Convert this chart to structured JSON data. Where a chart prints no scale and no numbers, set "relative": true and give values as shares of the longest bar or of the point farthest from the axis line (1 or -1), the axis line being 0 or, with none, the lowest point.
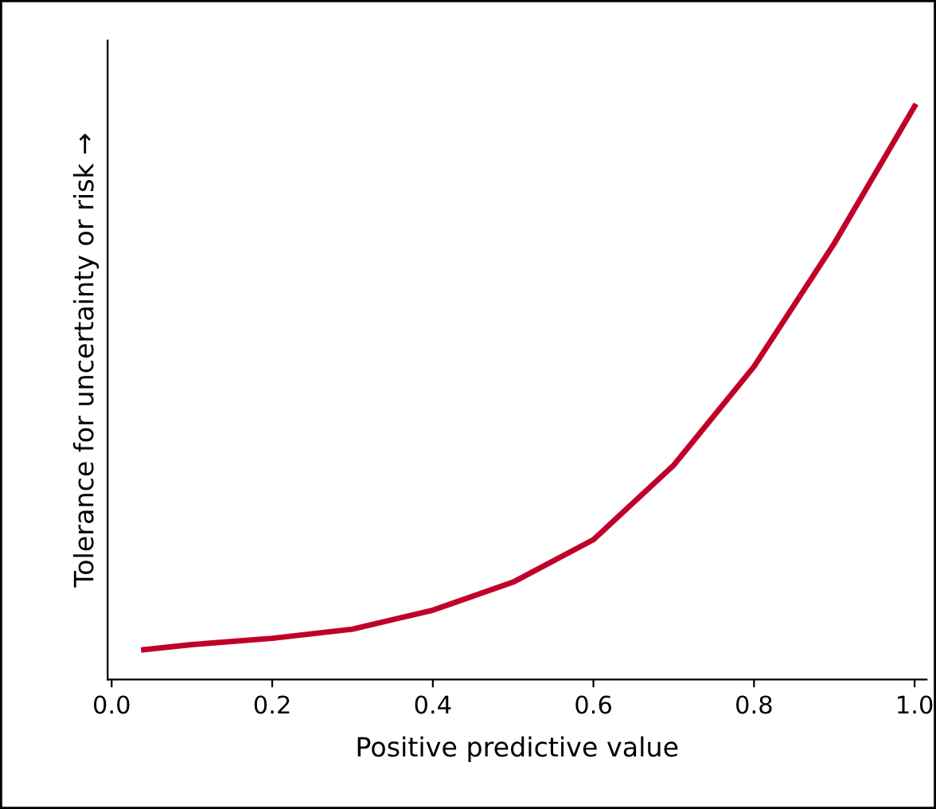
{
  "chart_data": {
    "type": "line",
    "relative": true,
    "xlabel": "Positive predictive value",
    "ylabel": "Tolerance for uncertainty or risk →",
    "x": [
      0.04,
      0.1,
      0.2,
      0.3,
      0.4,
      0.5,
      0.6,
      0.7,
      0.8,
      0.9,
      1.0
    ],
    "series": [
      {
        "color": "#c0002a",
        "values": [
          0.052,
          0.061,
          0.072,
          0.088,
          0.121,
          0.17,
          0.244,
          0.374,
          0.546,
          0.761,
          1.0
        ]
      }
    ],
    "xlim": [
      -0.005,
      1.015
    ],
    "xticks": [
      {
        "value": 0,
        "label": "0.0"
      },
      0.2,
      0.4,
      0.6,
      0.8,
      {
        "value": 1,
        "label": "1.0"
      }
    ],
    "grid": false,
    "legend": false,
    "marker": "none",
    "line_style": "solid"
  }
}
